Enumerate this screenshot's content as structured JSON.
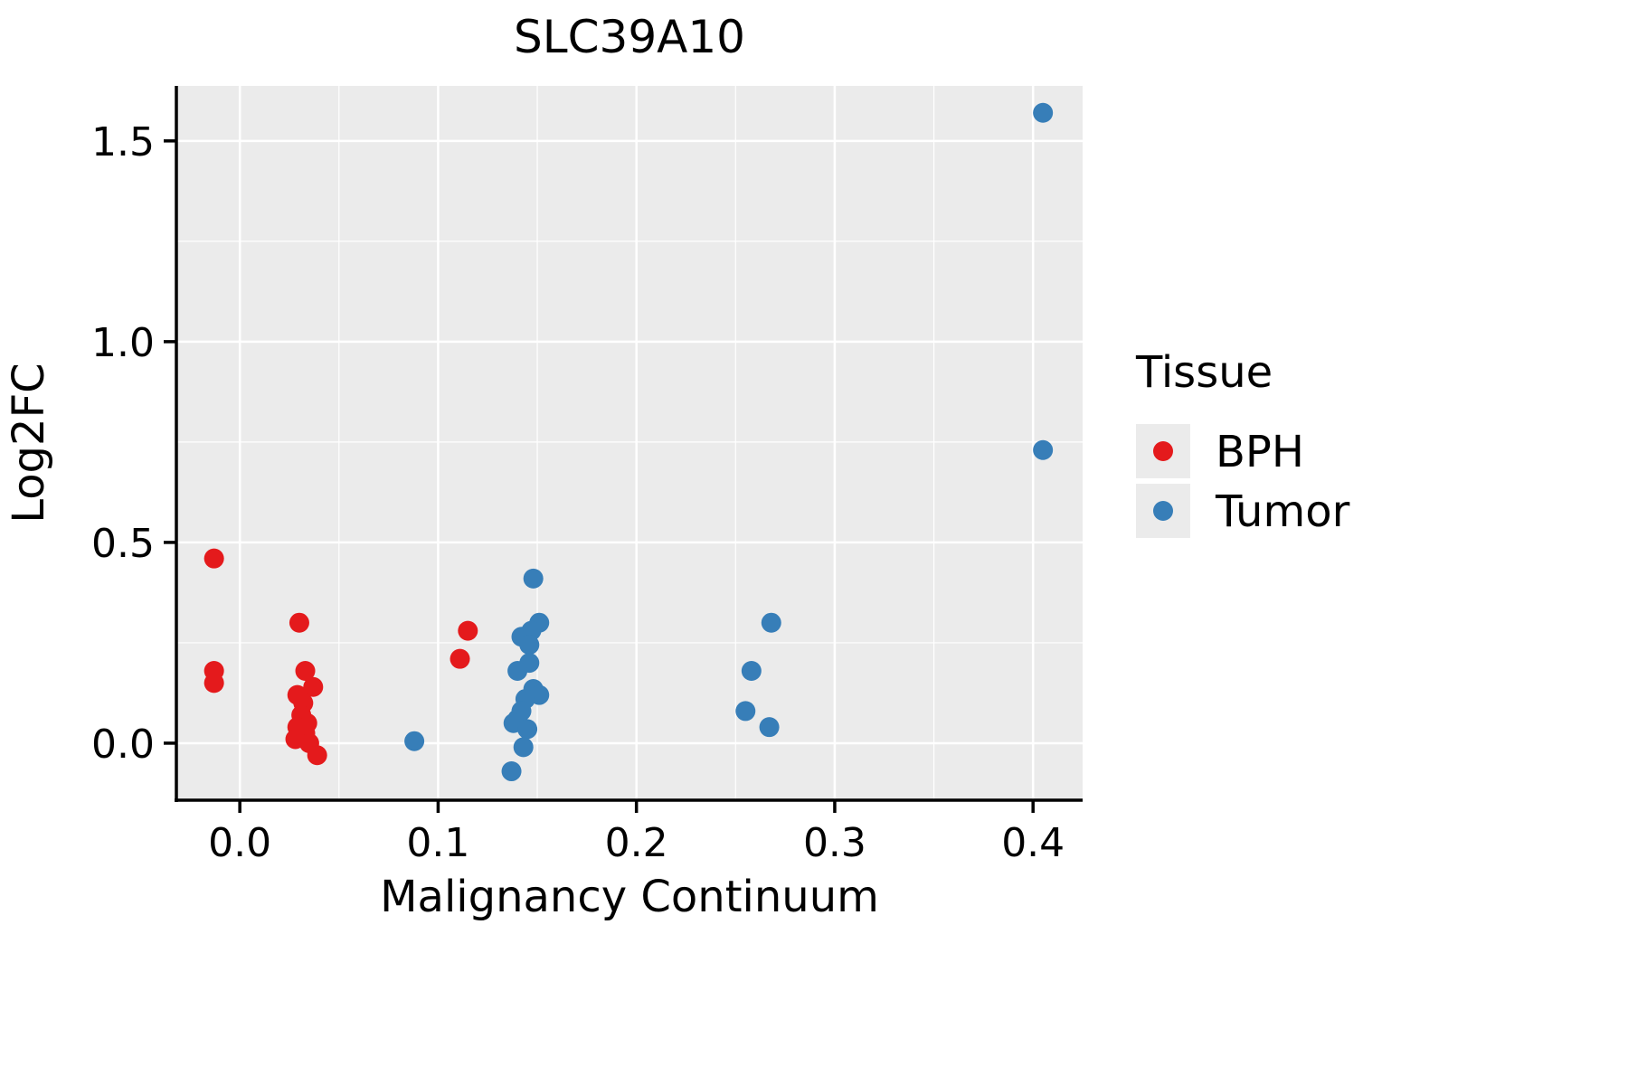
{
  "figure": {
    "background": "#ffffff",
    "panel_background": "#ebebeb",
    "grid_color": "#ffffff",
    "axis_color": "#000000",
    "text_color": "#000000",
    "legend_key_background": "#ebebeb"
  },
  "chart_data": {
    "type": "scatter",
    "title": "SLC39A10",
    "xlabel": "Malignancy Continuum",
    "ylabel": "Log2FC",
    "xlim": [
      -0.032,
      0.425
    ],
    "ylim": [
      -0.142,
      1.637
    ],
    "x_ticks": [
      0.0,
      0.1,
      0.2,
      0.3,
      0.4
    ],
    "x_tick_labels": [
      "0.0",
      "0.1",
      "0.2",
      "0.3",
      "0.4"
    ],
    "y_ticks": [
      0.0,
      0.5,
      1.0,
      1.5
    ],
    "y_tick_labels": [
      "0.0",
      "0.5",
      "1.0",
      "1.5"
    ],
    "x_minor_ticks": [
      0.05,
      0.15,
      0.25,
      0.35
    ],
    "y_minor_ticks": [
      0.25,
      0.75,
      1.25
    ],
    "grid": true,
    "legend_title": "Tissue",
    "legend_position": "right",
    "marker_radius": 11,
    "series": [
      {
        "name": "BPH",
        "color": "#e41a1c",
        "points": [
          [
            -0.013,
            0.46
          ],
          [
            -0.013,
            0.18
          ],
          [
            -0.013,
            0.15
          ],
          [
            0.03,
            0.3
          ],
          [
            0.033,
            0.18
          ],
          [
            0.037,
            0.14
          ],
          [
            0.029,
            0.12
          ],
          [
            0.032,
            0.1
          ],
          [
            0.031,
            0.07
          ],
          [
            0.034,
            0.05
          ],
          [
            0.029,
            0.04
          ],
          [
            0.033,
            0.025
          ],
          [
            0.028,
            0.01
          ],
          [
            0.035,
            0.0
          ],
          [
            0.039,
            -0.03
          ],
          [
            0.115,
            0.28
          ],
          [
            0.111,
            0.21
          ]
        ]
      },
      {
        "name": "Tumor",
        "color": "#377eb8",
        "points": [
          [
            0.088,
            0.005
          ],
          [
            0.148,
            0.41
          ],
          [
            0.151,
            0.3
          ],
          [
            0.147,
            0.28
          ],
          [
            0.142,
            0.265
          ],
          [
            0.146,
            0.245
          ],
          [
            0.146,
            0.2
          ],
          [
            0.14,
            0.18
          ],
          [
            0.148,
            0.135
          ],
          [
            0.151,
            0.12
          ],
          [
            0.144,
            0.11
          ],
          [
            0.142,
            0.08
          ],
          [
            0.14,
            0.06
          ],
          [
            0.138,
            0.05
          ],
          [
            0.145,
            0.035
          ],
          [
            0.143,
            -0.01
          ],
          [
            0.137,
            -0.07
          ],
          [
            0.268,
            0.3
          ],
          [
            0.258,
            0.18
          ],
          [
            0.255,
            0.08
          ],
          [
            0.267,
            0.04
          ],
          [
            0.405,
            1.57
          ],
          [
            0.405,
            0.73
          ]
        ]
      }
    ]
  }
}
